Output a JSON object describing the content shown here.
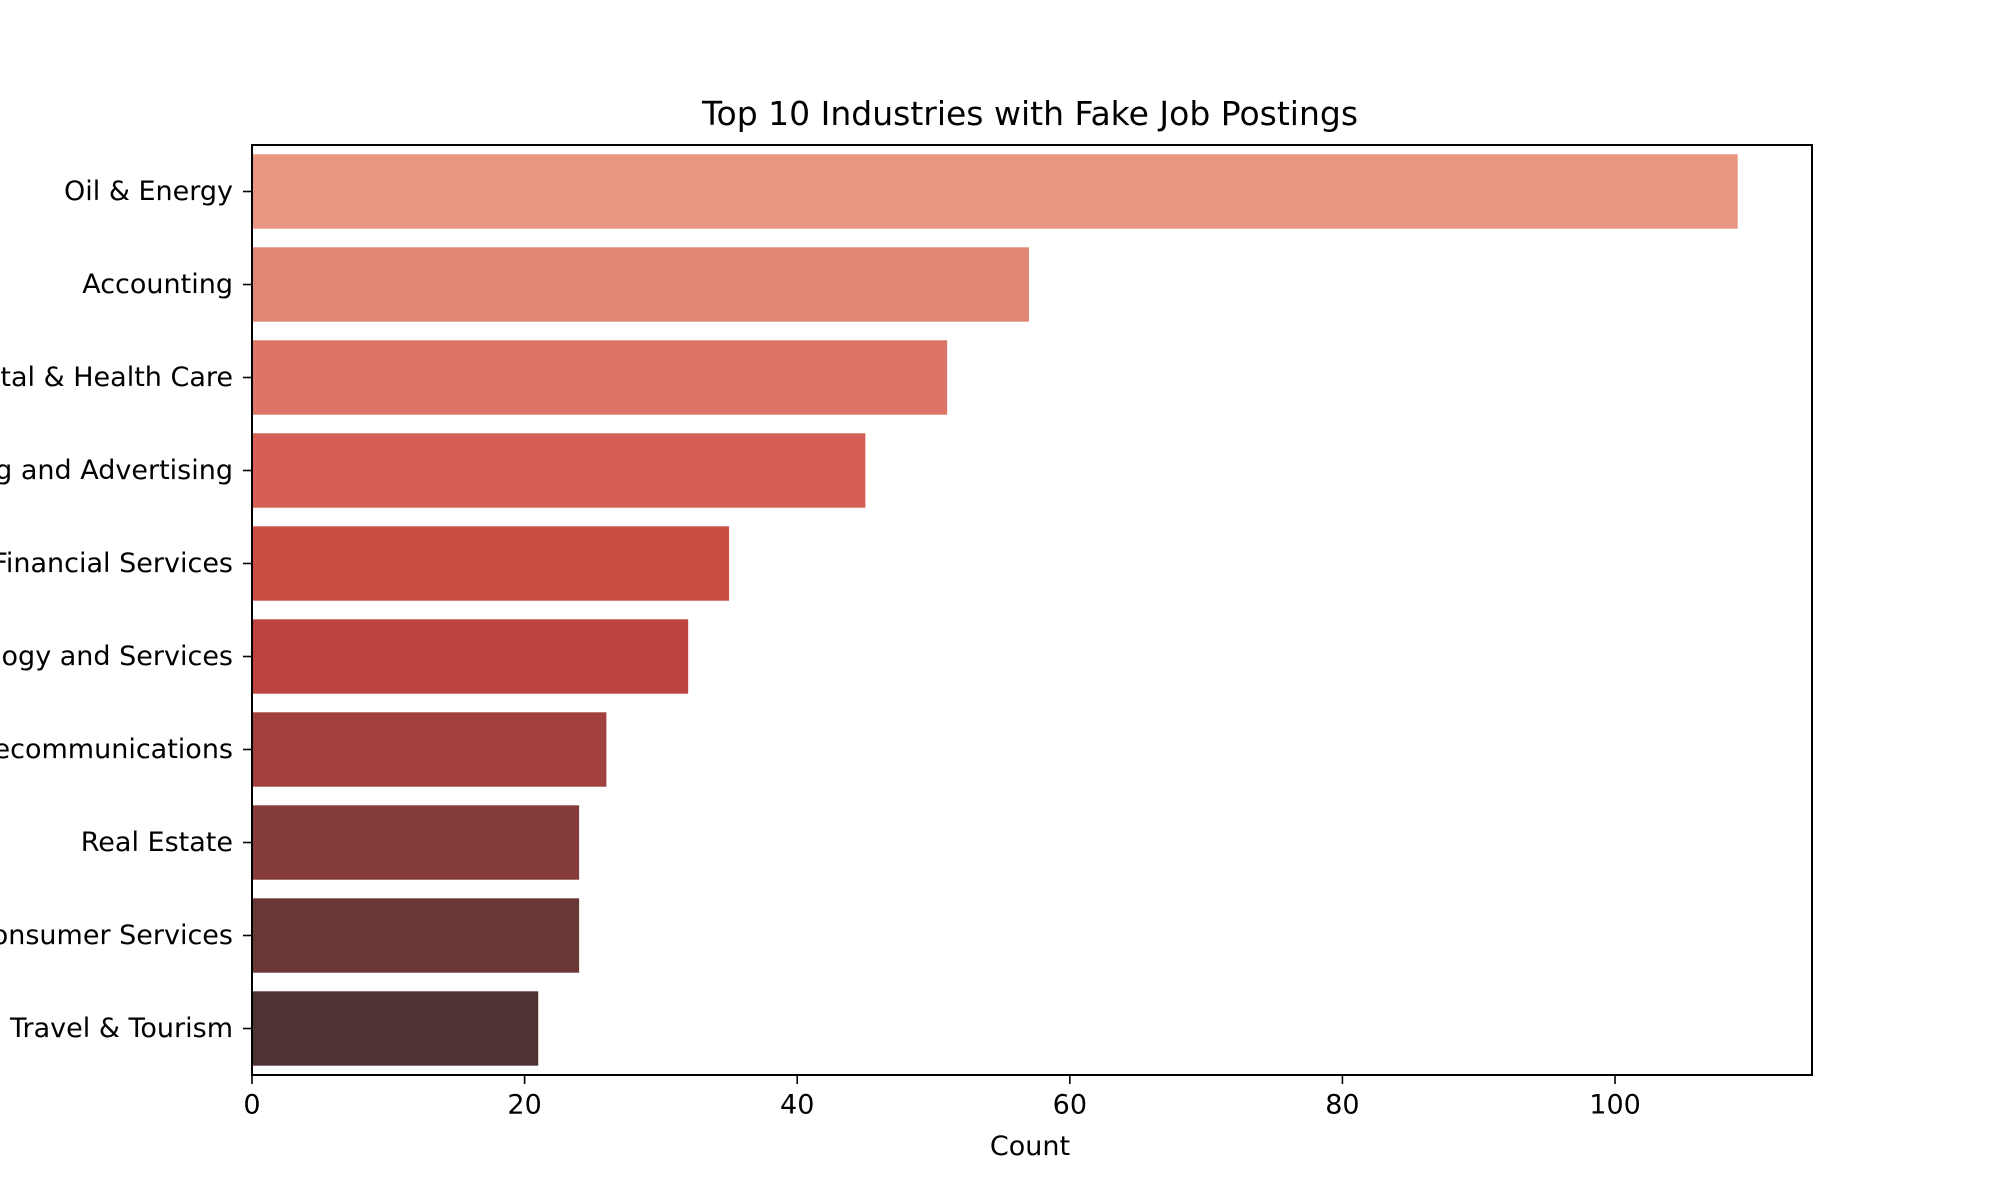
{
  "chart_data": {
    "type": "bar",
    "orientation": "horizontal",
    "title": "Top 10 Industries with Fake Job Postings",
    "xlabel": "Count",
    "ylabel": "",
    "xlim": [
      0,
      114.45
    ],
    "xticks": [
      0,
      20,
      40,
      60,
      80,
      100
    ],
    "categories": [
      "Oil & Energy",
      "Accounting",
      "Hospital & Health Care",
      "Marketing and Advertising",
      "Financial Services",
      "Information Technology and Services",
      "Telecommunications",
      "Real Estate",
      "Consumer Services",
      "Leisure, Travel & Tourism"
    ],
    "values": [
      109,
      57,
      51,
      45,
      35,
      32,
      26,
      24,
      24,
      21
    ],
    "colors": [
      "#e89682",
      "#e18574",
      "#dc7566",
      "#d55f54",
      "#ca4d43",
      "#bc443e",
      "#a1403c",
      "#853c3a",
      "#683736",
      "#4f3233"
    ],
    "grid": false,
    "legend": "none"
  }
}
